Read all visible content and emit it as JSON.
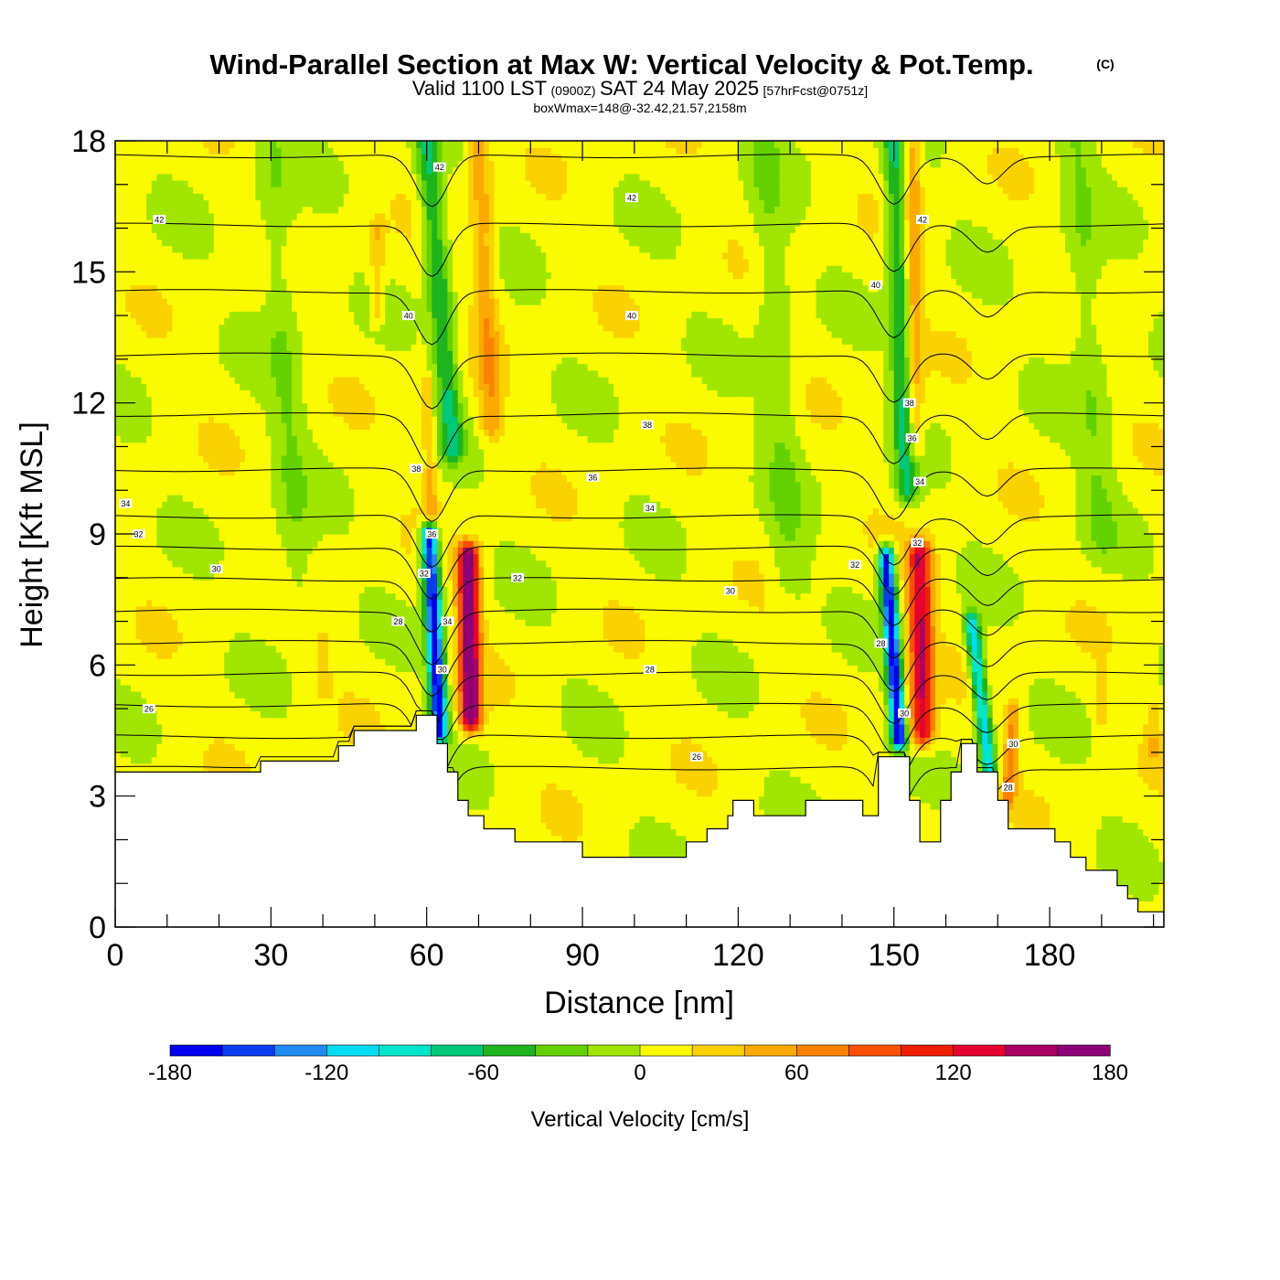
{
  "header": {
    "title": "Wind-Parallel Section at Max W: Vertical Velocity & Pot.Temp.",
    "copyright": "(C)",
    "valid_prefix": "Valid 1100 LST",
    "valid_utc": "(0900Z)",
    "valid_date": "SAT 24 May 2025",
    "forecast": "[57hrFcst@0751z]",
    "box_info": "boxWmax=148@-32.42,21.57,2158m"
  },
  "colors": {
    "background": "#ffffff",
    "terrain": "#ffffff",
    "contour": "#000000",
    "palette": [
      "#0000f0",
      "#0a3cf0",
      "#1e8cf0",
      "#00dcf0",
      "#00e6c8",
      "#00c878",
      "#1eb41e",
      "#64d200",
      "#a0e600",
      "#fafa00",
      "#fad200",
      "#faaa00",
      "#fa8200",
      "#fa5000",
      "#f01e00",
      "#e60032",
      "#aa0064",
      "#8c0078"
    ]
  },
  "chart_data": {
    "type": "heatmap",
    "xlabel": "Distance [nm]",
    "ylabel": "Height [Kft MSL]",
    "xlim": [
      0,
      202
    ],
    "ylim": [
      0,
      18
    ],
    "x_ticks": [
      0,
      30,
      60,
      90,
      120,
      150,
      180
    ],
    "x_tick_labels": [
      "0",
      "30",
      "60",
      "90",
      "120",
      "150",
      "180"
    ],
    "y_ticks": [
      0,
      3,
      6,
      9,
      12,
      15,
      18
    ],
    "y_tick_labels": [
      "0",
      "3",
      "6",
      "9",
      "12",
      "15",
      "18"
    ],
    "colorbar": {
      "title": "Vertical Velocity [cm/s]",
      "levels": [
        -180,
        -160,
        -140,
        -120,
        -100,
        -80,
        -60,
        -40,
        -20,
        0,
        20,
        40,
        60,
        80,
        100,
        120,
        140,
        160,
        180
      ],
      "tick_values": [
        -180,
        -120,
        -60,
        0,
        60,
        120,
        180
      ],
      "tick_labels": [
        "-180",
        "-120",
        "-60",
        "0",
        "60",
        "120",
        "180"
      ]
    },
    "terrain": [
      [
        0,
        3.55
      ],
      [
        28,
        3.55
      ],
      [
        28,
        3.8
      ],
      [
        43,
        3.8
      ],
      [
        43,
        4.15
      ],
      [
        46,
        4.15
      ],
      [
        46,
        4.5
      ],
      [
        58,
        4.5
      ],
      [
        58,
        4.85
      ],
      [
        62,
        4.85
      ],
      [
        62,
        4.2
      ],
      [
        64,
        4.2
      ],
      [
        64,
        3.55
      ],
      [
        66,
        3.55
      ],
      [
        66,
        2.9
      ],
      [
        68,
        2.9
      ],
      [
        68,
        2.55
      ],
      [
        71,
        2.55
      ],
      [
        71,
        2.25
      ],
      [
        77,
        2.25
      ],
      [
        77,
        1.95
      ],
      [
        90,
        1.95
      ],
      [
        90,
        1.6
      ],
      [
        110,
        1.6
      ],
      [
        110,
        1.95
      ],
      [
        114,
        1.95
      ],
      [
        114,
        2.25
      ],
      [
        118,
        2.25
      ],
      [
        118,
        2.55
      ],
      [
        119,
        2.55
      ],
      [
        119,
        2.9
      ],
      [
        123,
        2.9
      ],
      [
        123,
        2.55
      ],
      [
        133,
        2.55
      ],
      [
        133,
        2.9
      ],
      [
        144,
        2.9
      ],
      [
        144,
        2.55
      ],
      [
        147,
        2.55
      ],
      [
        147,
        3.9
      ],
      [
        153,
        3.9
      ],
      [
        153,
        2.9
      ],
      [
        155,
        2.9
      ],
      [
        155,
        1.95
      ],
      [
        159,
        1.95
      ],
      [
        159,
        2.9
      ],
      [
        161,
        2.9
      ],
      [
        161,
        3.55
      ],
      [
        163,
        3.55
      ],
      [
        163,
        4.2
      ],
      [
        166,
        4.2
      ],
      [
        166,
        3.55
      ],
      [
        170,
        3.55
      ],
      [
        170,
        2.9
      ],
      [
        172,
        2.9
      ],
      [
        172,
        2.25
      ],
      [
        181,
        2.25
      ],
      [
        181,
        1.95
      ],
      [
        184,
        1.95
      ],
      [
        184,
        1.6
      ],
      [
        187,
        1.6
      ],
      [
        187,
        1.3
      ],
      [
        193,
        1.3
      ],
      [
        193,
        0.95
      ],
      [
        195,
        0.95
      ],
      [
        195,
        0.65
      ],
      [
        197,
        0.65
      ],
      [
        197,
        0.35
      ],
      [
        202,
        0.35
      ]
    ],
    "features": [
      {
        "kind": "down",
        "x0": 62.5,
        "y0": 4.5,
        "x1": 60.5,
        "y1": 9.0,
        "sigma": 1.1,
        "amp": -185
      },
      {
        "kind": "down",
        "x0": 65.0,
        "y0": 11.0,
        "x1": 60.0,
        "y1": 18.0,
        "sigma": 1.6,
        "amp": -70
      },
      {
        "kind": "up",
        "x0": 68.5,
        "y0": 4.8,
        "x1": 68.0,
        "y1": 8.5,
        "sigma": 1.4,
        "amp": 170
      },
      {
        "kind": "up",
        "x0": 72.5,
        "y0": 11.5,
        "x1": 70.0,
        "y1": 18.0,
        "sigma": 1.5,
        "amp": 45
      },
      {
        "kind": "up",
        "x0": 61.0,
        "y0": 9.5,
        "x1": 60.0,
        "y1": 12.5,
        "sigma": 0.9,
        "amp": 40
      },
      {
        "kind": "down",
        "x0": 151.0,
        "y0": 4.3,
        "x1": 148.5,
        "y1": 8.5,
        "sigma": 1.0,
        "amp": -185
      },
      {
        "kind": "down",
        "x0": 152.5,
        "y0": 10.0,
        "x1": 150.0,
        "y1": 18.0,
        "sigma": 1.5,
        "amp": -70
      },
      {
        "kind": "up",
        "x0": 155.5,
        "y0": 4.5,
        "x1": 155.0,
        "y1": 8.5,
        "sigma": 1.6,
        "amp": 130
      },
      {
        "kind": "up",
        "x0": 154.0,
        "y0": 11.0,
        "x1": 153.5,
        "y1": 18.0,
        "sigma": 1.2,
        "amp": 50
      },
      {
        "kind": "down",
        "x0": 168.5,
        "y0": 3.5,
        "x1": 165.0,
        "y1": 7.0,
        "sigma": 1.0,
        "amp": -120
      },
      {
        "kind": "up",
        "x0": 172.0,
        "y0": 3.0,
        "x1": 173.0,
        "y1": 5.0,
        "sigma": 1.0,
        "amp": 55
      },
      {
        "kind": "up",
        "x0": 50.5,
        "y0": 14.0,
        "x1": 50.5,
        "y1": 16.0,
        "sigma": 1.0,
        "amp": 30
      },
      {
        "kind": "up",
        "x0": 40.0,
        "y0": 5.5,
        "x1": 40.0,
        "y1": 6.5,
        "sigma": 0.9,
        "amp": 25
      },
      {
        "kind": "up",
        "x0": 190.0,
        "y0": 4.8,
        "x1": 190.0,
        "y1": 5.8,
        "sigma": 0.8,
        "amp": 25
      },
      {
        "kind": "up",
        "x0": 200.0,
        "y0": 4.0,
        "x1": 200.0,
        "y1": 5.0,
        "sigma": 0.8,
        "amp": 25
      },
      {
        "kind": "down",
        "x0": 35.0,
        "y0": 8.0,
        "x1": 30.0,
        "y1": 18.0,
        "sigma": 2.5,
        "amp": -25
      },
      {
        "kind": "down",
        "x0": 130.0,
        "y0": 8.0,
        "x1": 125.0,
        "y1": 18.0,
        "sigma": 2.5,
        "amp": -25
      },
      {
        "kind": "down",
        "x0": 190.0,
        "y0": 9.0,
        "x1": 185.0,
        "y1": 18.0,
        "sigma": 2.5,
        "amp": -25
      }
    ],
    "theta_contours": [
      26,
      28,
      30,
      32,
      34,
      36,
      38,
      40,
      42
    ],
    "contour_labels": [
      {
        "value": "42",
        "x": 8.5,
        "y": 16.2
      },
      {
        "value": "42",
        "x": 62.5,
        "y": 17.4
      },
      {
        "value": "42",
        "x": 99.5,
        "y": 16.7
      },
      {
        "value": "42",
        "x": 155.5,
        "y": 16.2
      },
      {
        "value": "40",
        "x": 56.5,
        "y": 14.0
      },
      {
        "value": "40",
        "x": 99.5,
        "y": 14.0
      },
      {
        "value": "40",
        "x": 146.5,
        "y": 14.7
      },
      {
        "value": "38",
        "x": 102.5,
        "y": 11.5
      },
      {
        "value": "38",
        "x": 153.0,
        "y": 12.0
      },
      {
        "value": "38",
        "x": 58.0,
        "y": 10.5
      },
      {
        "value": "36",
        "x": 92.0,
        "y": 10.3
      },
      {
        "value": "36",
        "x": 153.5,
        "y": 11.2
      },
      {
        "value": "36",
        "x": 61.0,
        "y": 9.0
      },
      {
        "value": "34",
        "x": 2.0,
        "y": 9.7
      },
      {
        "value": "34",
        "x": 103.0,
        "y": 9.6
      },
      {
        "value": "34",
        "x": 155.0,
        "y": 10.2
      },
      {
        "value": "34",
        "x": 64.0,
        "y": 7.0
      },
      {
        "value": "32",
        "x": 4.5,
        "y": 9.0
      },
      {
        "value": "32",
        "x": 77.5,
        "y": 8.0
      },
      {
        "value": "32",
        "x": 142.5,
        "y": 8.3
      },
      {
        "value": "32",
        "x": 154.5,
        "y": 8.8
      },
      {
        "value": "32",
        "x": 59.5,
        "y": 8.1
      },
      {
        "value": "30",
        "x": 19.5,
        "y": 8.2
      },
      {
        "value": "30",
        "x": 118.5,
        "y": 7.7
      },
      {
        "value": "30",
        "x": 63.0,
        "y": 5.9
      },
      {
        "value": "30",
        "x": 152.0,
        "y": 4.9
      },
      {
        "value": "30",
        "x": 173.0,
        "y": 4.2
      },
      {
        "value": "28",
        "x": 54.5,
        "y": 7.0
      },
      {
        "value": "28",
        "x": 103.0,
        "y": 5.9
      },
      {
        "value": "28",
        "x": 147.5,
        "y": 6.5
      },
      {
        "value": "28",
        "x": 172.0,
        "y": 3.2
      },
      {
        "value": "26",
        "x": 6.5,
        "y": 5.0
      },
      {
        "value": "26",
        "x": 112.0,
        "y": 3.9
      }
    ]
  }
}
